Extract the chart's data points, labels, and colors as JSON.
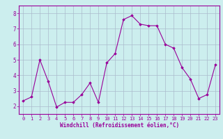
{
  "x": [
    0,
    1,
    2,
    3,
    4,
    5,
    6,
    7,
    8,
    9,
    10,
    11,
    12,
    13,
    14,
    15,
    16,
    17,
    18,
    19,
    20,
    21,
    22,
    23
  ],
  "y": [
    2.35,
    2.6,
    5.0,
    3.6,
    1.95,
    2.25,
    2.25,
    2.75,
    3.5,
    2.25,
    4.8,
    5.4,
    7.6,
    7.85,
    7.3,
    7.2,
    7.2,
    6.0,
    5.75,
    4.5,
    3.75,
    2.5,
    2.75,
    4.7
  ],
  "line_color": "#990099",
  "marker_color": "#990099",
  "bg_color": "#cceeee",
  "grid_color": "#aabbcc",
  "xlabel": "Windchill (Refroidissement éolien,°C)",
  "xlim": [
    -0.5,
    23.5
  ],
  "ylim": [
    1.5,
    8.5
  ],
  "xticks": [
    0,
    1,
    2,
    3,
    4,
    5,
    6,
    7,
    8,
    9,
    10,
    11,
    12,
    13,
    14,
    15,
    16,
    17,
    18,
    19,
    20,
    21,
    22,
    23
  ],
  "yticks": [
    2,
    3,
    4,
    5,
    6,
    7,
    8
  ],
  "figwidth": 3.2,
  "figheight": 2.0,
  "dpi": 100
}
